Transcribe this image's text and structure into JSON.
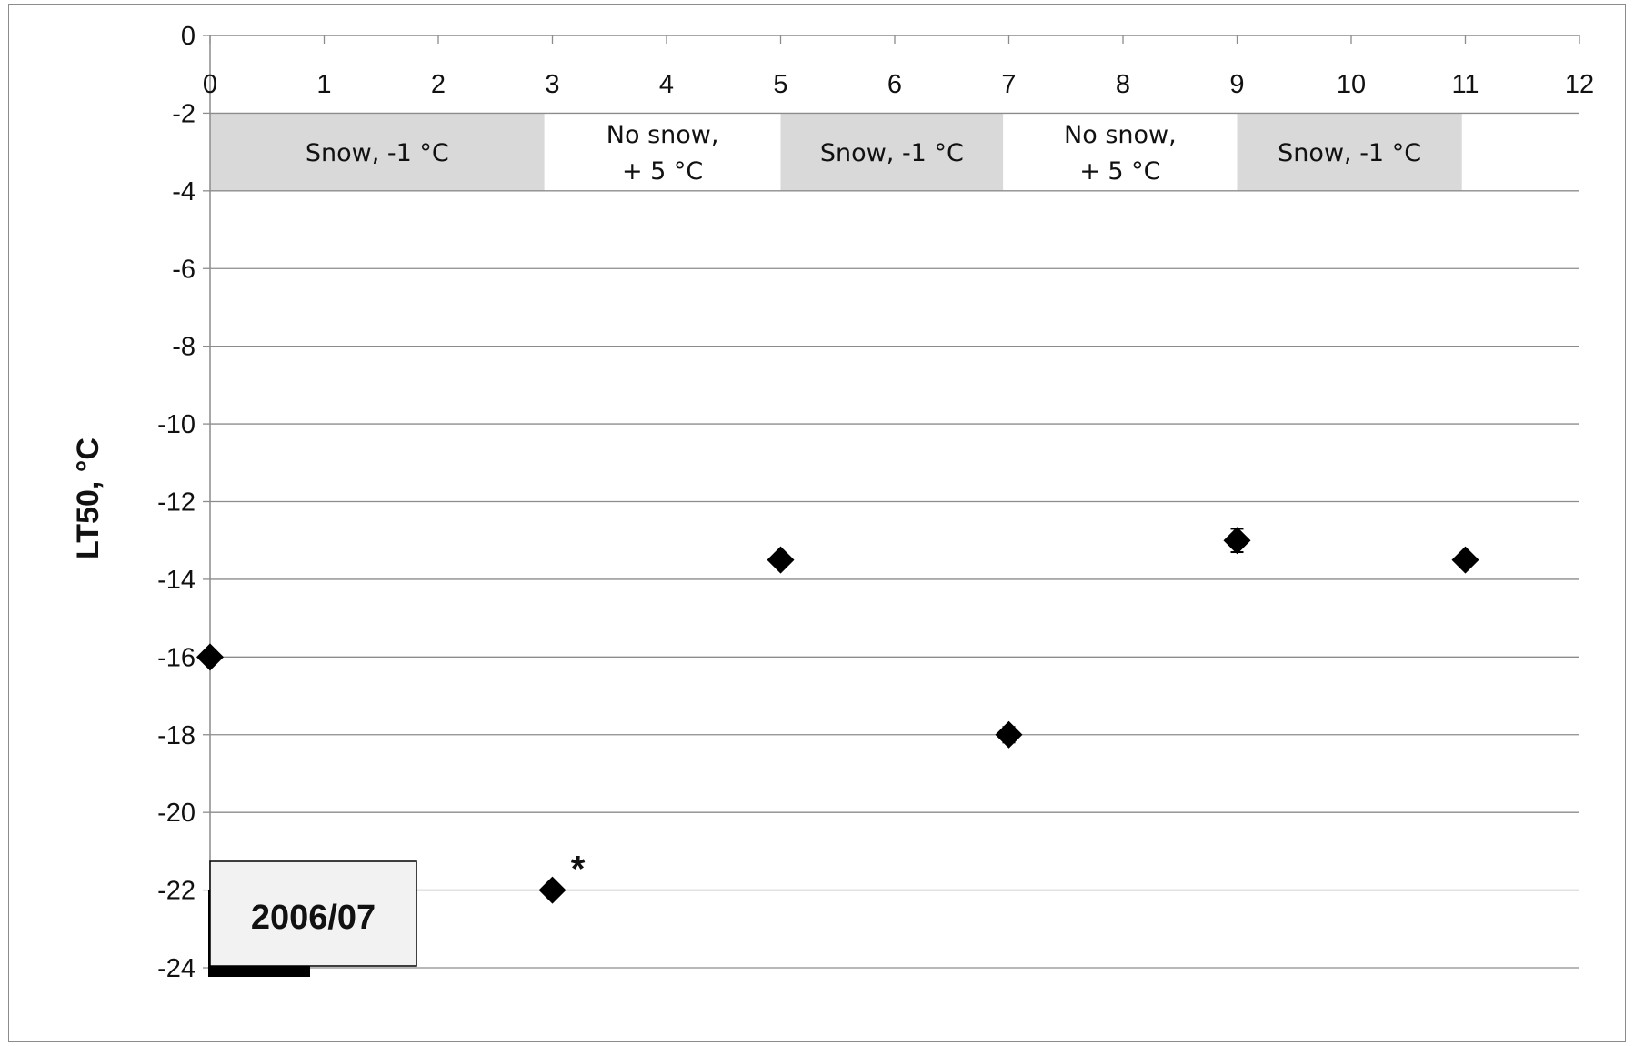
{
  "chart_data": {
    "type": "scatter",
    "title": "",
    "xlabel": "",
    "ylabel": "LT50, °C",
    "xlim": [
      0,
      12
    ],
    "ylim": [
      -24,
      0
    ],
    "x_ticks": [
      0,
      1,
      2,
      3,
      4,
      5,
      6,
      7,
      8,
      9,
      10,
      11,
      12
    ],
    "y_ticks": [
      0,
      -2,
      -4,
      -6,
      -8,
      -10,
      -12,
      -14,
      -16,
      -18,
      -20,
      -22,
      -24
    ],
    "x_axis_position": "top",
    "grid": "horizontal",
    "series": [
      {
        "marker": "diamond",
        "color": "#000000",
        "points": [
          {
            "x": 0,
            "y": -16,
            "error": 0
          },
          {
            "x": 3,
            "y": -22,
            "error": 0
          },
          {
            "x": 5,
            "y": -13.5,
            "error": 0
          },
          {
            "x": 7,
            "y": -18,
            "error": 0.2
          },
          {
            "x": 9,
            "y": -13,
            "error": 0.3
          },
          {
            "x": 11,
            "y": -13.5,
            "error": 0
          }
        ]
      }
    ],
    "bands": [
      {
        "x_start": 0,
        "x_end": 2.93,
        "label_lines": [
          "Snow, -1 °C"
        ],
        "shaded": true,
        "color": "#d9d9d9"
      },
      {
        "x_start": 2.93,
        "x_end": 5,
        "label_lines": [
          "No snow,",
          "+ 5 °C"
        ],
        "shaded": false,
        "color": "#ffffff"
      },
      {
        "x_start": 5,
        "x_end": 6.95,
        "label_lines": [
          "Snow, -1 °C"
        ],
        "shaded": true,
        "color": "#d9d9d9"
      },
      {
        "x_start": 6.95,
        "x_end": 9,
        "label_lines": [
          "No snow,",
          "+ 5 °C"
        ],
        "shaded": false,
        "color": "#ffffff"
      },
      {
        "x_start": 9,
        "x_end": 10.97,
        "label_lines": [
          "Snow, -1 °C"
        ],
        "shaded": true,
        "color": "#d9d9d9"
      }
    ],
    "band_y_range": [
      -4,
      -2
    ],
    "annotations": [
      {
        "text": "*",
        "x": 3,
        "y": -22
      },
      {
        "text": "2006/07",
        "kind": "box"
      }
    ]
  }
}
